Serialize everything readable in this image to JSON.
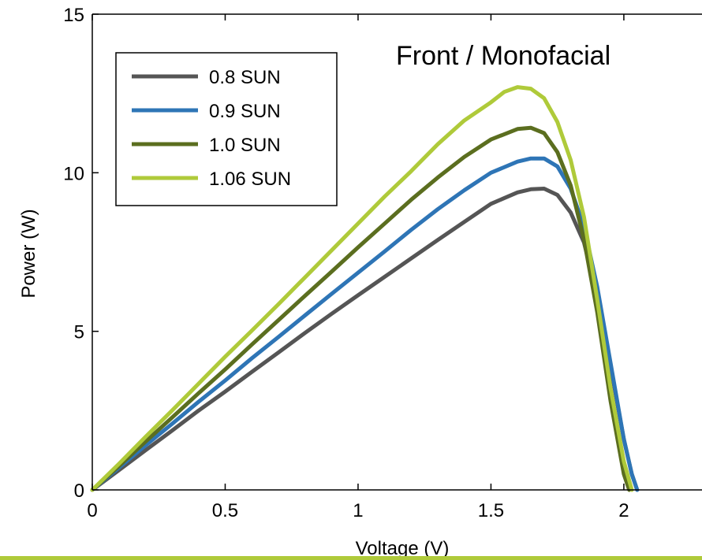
{
  "chart_data": {
    "type": "line",
    "annotation": "Front / Monofacial",
    "xlabel": "Voltage (V)",
    "ylabel": "Power (W)",
    "xlim": [
      0,
      2.3
    ],
    "ylim": [
      0,
      15
    ],
    "xticks": [
      0,
      0.5,
      1,
      1.5,
      2
    ],
    "xtick_labels": [
      "0",
      "0.5",
      "1",
      "1.5",
      "2"
    ],
    "yticks": [
      0,
      5,
      10,
      15
    ],
    "ytick_labels": [
      "0",
      "5",
      "10",
      "15"
    ],
    "grid": false,
    "legend_position": "top-left",
    "series": [
      {
        "name": "0.8 SUN",
        "color": "#555555",
        "x": [
          0,
          0.1,
          0.2,
          0.3,
          0.4,
          0.5,
          0.6,
          0.7,
          0.8,
          0.9,
          1.0,
          1.1,
          1.2,
          1.3,
          1.4,
          1.5,
          1.6,
          1.65,
          1.7,
          1.75,
          1.8,
          1.85,
          1.9,
          1.95,
          2.0,
          2.03,
          2.05
        ],
        "y": [
          0,
          0.62,
          1.25,
          1.87,
          2.5,
          3.1,
          3.72,
          4.33,
          4.95,
          5.55,
          6.14,
          6.72,
          7.3,
          7.88,
          8.45,
          9.02,
          9.38,
          9.48,
          9.5,
          9.3,
          8.75,
          7.8,
          6.1,
          3.9,
          1.6,
          0.5,
          0
        ]
      },
      {
        "name": "0.9 SUN",
        "color": "#2e75b6",
        "x": [
          0,
          0.1,
          0.2,
          0.3,
          0.4,
          0.5,
          0.6,
          0.7,
          0.8,
          0.9,
          1.0,
          1.1,
          1.2,
          1.3,
          1.4,
          1.5,
          1.6,
          1.65,
          1.7,
          1.75,
          1.8,
          1.85,
          1.9,
          1.95,
          2.0,
          2.03,
          2.05
        ],
        "y": [
          0,
          0.7,
          1.4,
          2.08,
          2.78,
          3.45,
          4.15,
          4.82,
          5.5,
          6.18,
          6.85,
          7.52,
          8.2,
          8.85,
          9.45,
          10.0,
          10.35,
          10.45,
          10.45,
          10.2,
          9.5,
          8.3,
          6.4,
          4.0,
          1.6,
          0.5,
          0
        ]
      },
      {
        "name": "1.0 SUN",
        "color": "#5b6e1f",
        "x": [
          0,
          0.1,
          0.2,
          0.3,
          0.4,
          0.5,
          0.6,
          0.7,
          0.8,
          0.9,
          1.0,
          1.1,
          1.2,
          1.3,
          1.4,
          1.5,
          1.6,
          1.65,
          1.7,
          1.75,
          1.8,
          1.85,
          1.9,
          1.95,
          2.0,
          2.02
        ],
        "y": [
          0,
          0.75,
          1.52,
          2.28,
          3.05,
          3.8,
          4.58,
          5.35,
          6.12,
          6.88,
          7.65,
          8.4,
          9.15,
          9.85,
          10.5,
          11.05,
          11.38,
          11.42,
          11.25,
          10.65,
          9.6,
          7.9,
          5.6,
          2.8,
          0.5,
          0
        ]
      },
      {
        "name": "1.06 SUN",
        "color": "#afca3a",
        "x": [
          0,
          0.1,
          0.2,
          0.3,
          0.4,
          0.5,
          0.6,
          0.7,
          0.8,
          0.9,
          1.0,
          1.1,
          1.2,
          1.3,
          1.4,
          1.5,
          1.55,
          1.6,
          1.65,
          1.7,
          1.75,
          1.8,
          1.85,
          1.9,
          1.95,
          2.0,
          2.03
        ],
        "y": [
          0,
          0.82,
          1.67,
          2.5,
          3.35,
          4.2,
          5.02,
          5.85,
          6.7,
          7.55,
          8.4,
          9.25,
          10.05,
          10.9,
          11.65,
          12.22,
          12.55,
          12.7,
          12.65,
          12.35,
          11.6,
          10.4,
          8.6,
          6.0,
          3.2,
          0.9,
          0
        ]
      }
    ]
  },
  "footer": {
    "accent_color": "#afca3a"
  }
}
